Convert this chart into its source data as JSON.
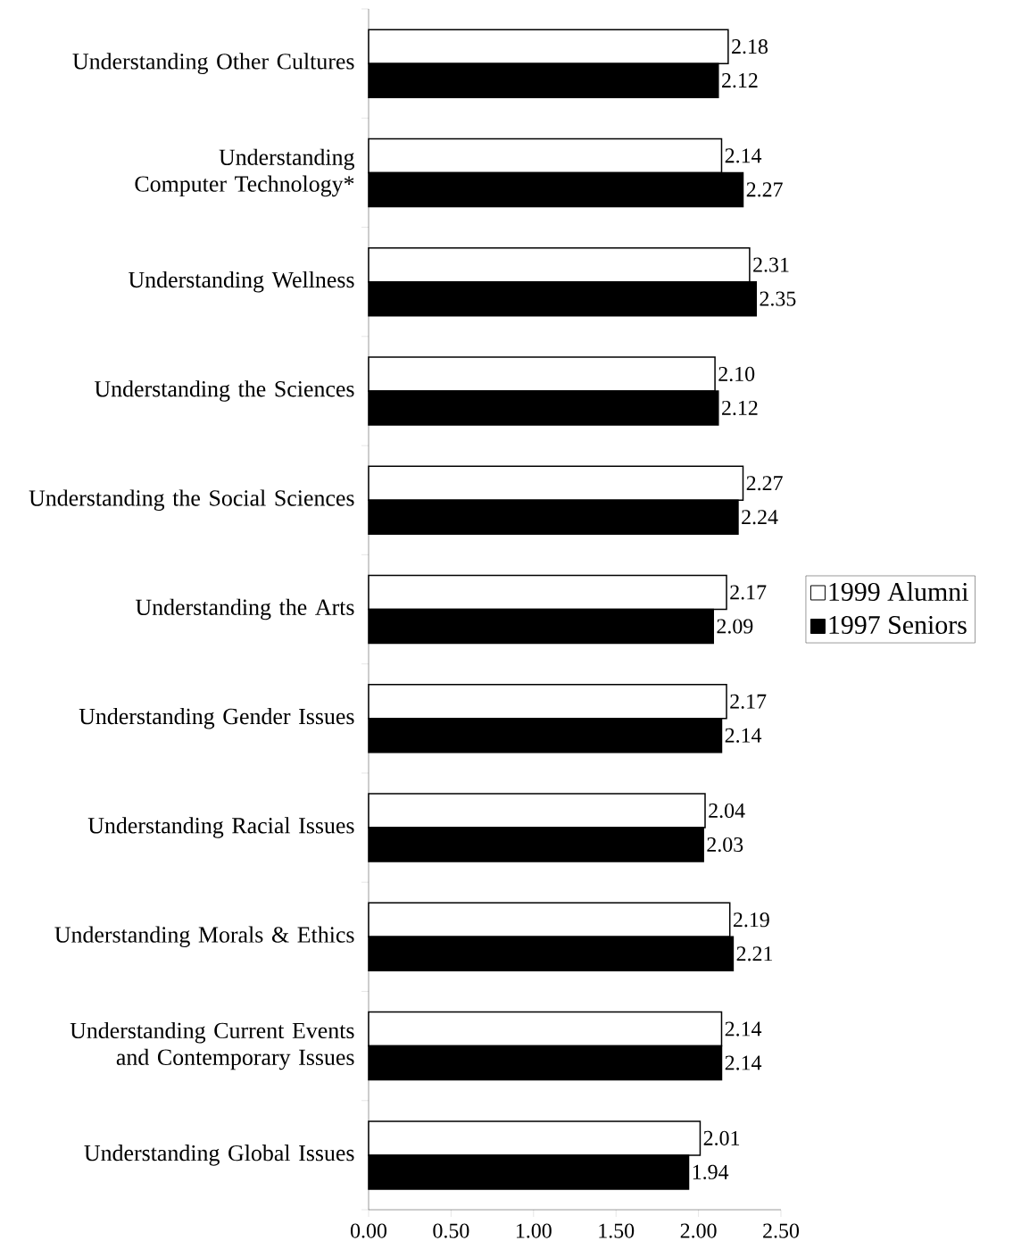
{
  "chart_data": {
    "type": "bar",
    "orientation": "horizontal",
    "categories": [
      "Understanding Other Cultures",
      "Understanding Computer Technology*",
      "Understanding Wellness",
      "Understanding the Sciences",
      "Understanding the Social Sciences",
      "Understanding the Arts",
      "Understanding Gender Issues",
      "Understanding Racial Issues",
      "Understanding Morals & Ethics",
      "Understanding Current Events and Contemporary Issues",
      "Understanding Global Issues"
    ],
    "series": [
      {
        "name": "1999 Alumni",
        "color": "#ffffff",
        "values": [
          2.18,
          2.14,
          2.31,
          2.1,
          2.27,
          2.17,
          2.17,
          2.04,
          2.19,
          2.14,
          2.01
        ],
        "value_labels": [
          "2.18",
          "2.14",
          "2.31",
          "2.10",
          "2.27",
          "2.17",
          "2.17",
          "2.04",
          "2.19",
          "2.14",
          "2.01"
        ]
      },
      {
        "name": "1997 Seniors",
        "color": "#000000",
        "values": [
          2.12,
          2.27,
          2.35,
          2.12,
          2.24,
          2.09,
          2.14,
          2.03,
          2.21,
          2.14,
          1.94
        ],
        "value_labels": [
          "2.12",
          "2.27",
          "2.35",
          "2.12",
          "2.24",
          "2.09",
          "2.14",
          "2.03",
          "2.21",
          "2.14",
          "1.94"
        ]
      }
    ],
    "xlim": [
      0,
      2.5
    ],
    "xticks": [
      {
        "value": 0,
        "label": "0.00"
      },
      {
        "value": 0.5,
        "label": "0.50"
      },
      {
        "value": 1,
        "label": "1.00"
      },
      {
        "value": 1.5,
        "label": "1.50"
      },
      {
        "value": 2,
        "label": "2.00"
      },
      {
        "value": 2.5,
        "label": "2.50"
      }
    ],
    "data_labels": true,
    "legend": "right",
    "grid": false
  }
}
